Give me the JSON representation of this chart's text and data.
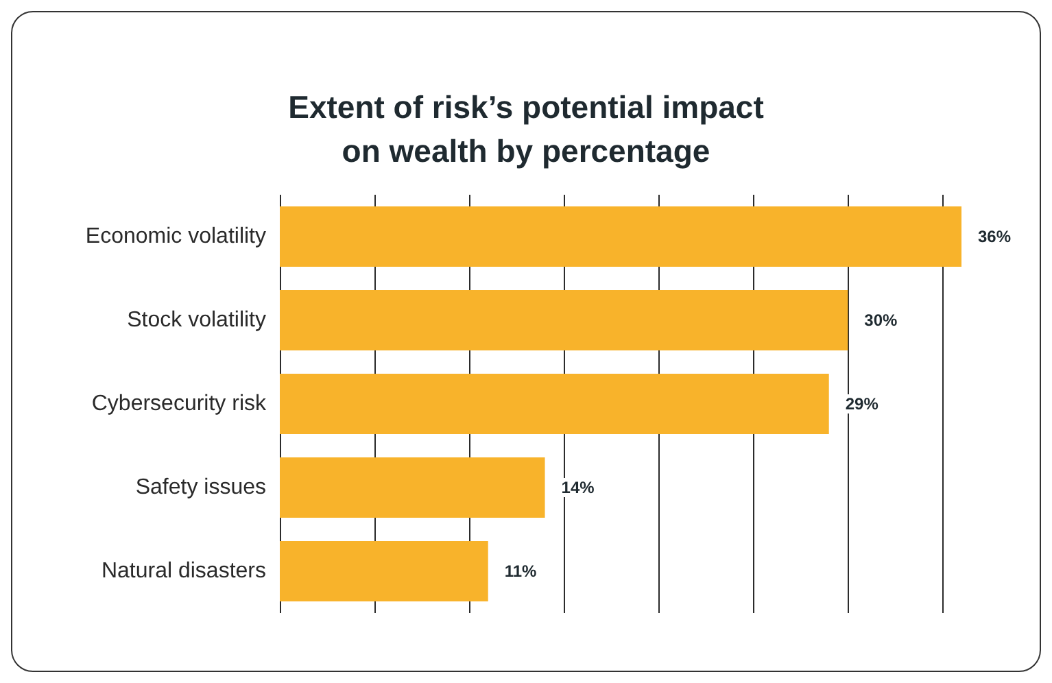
{
  "chart_data": {
    "type": "bar",
    "orientation": "horizontal",
    "title": "Extent of risk’s potential impact\non wealth by percentage",
    "categories": [
      "Economic volatility",
      "Stock volatility",
      "Cybersecurity risk",
      "Safety issues",
      "Natural disasters"
    ],
    "values": [
      36,
      30,
      29,
      14,
      11
    ],
    "value_labels": [
      "36%",
      "30%",
      "29%",
      "14%",
      "11%"
    ],
    "color": "#f8b32b",
    "xlim": [
      0,
      36
    ],
    "xticks": [
      {
        "value": 0,
        "label": null
      },
      {
        "value": 5,
        "label": null
      },
      {
        "value": 10,
        "label": null
      },
      {
        "value": 15,
        "label": null
      },
      {
        "value": 20,
        "label": null
      },
      {
        "value": 25,
        "label": null
      },
      {
        "value": 30,
        "label": null
      },
      {
        "value": 35,
        "label": null
      }
    ],
    "grid": "x",
    "tick_labels": "y"
  }
}
